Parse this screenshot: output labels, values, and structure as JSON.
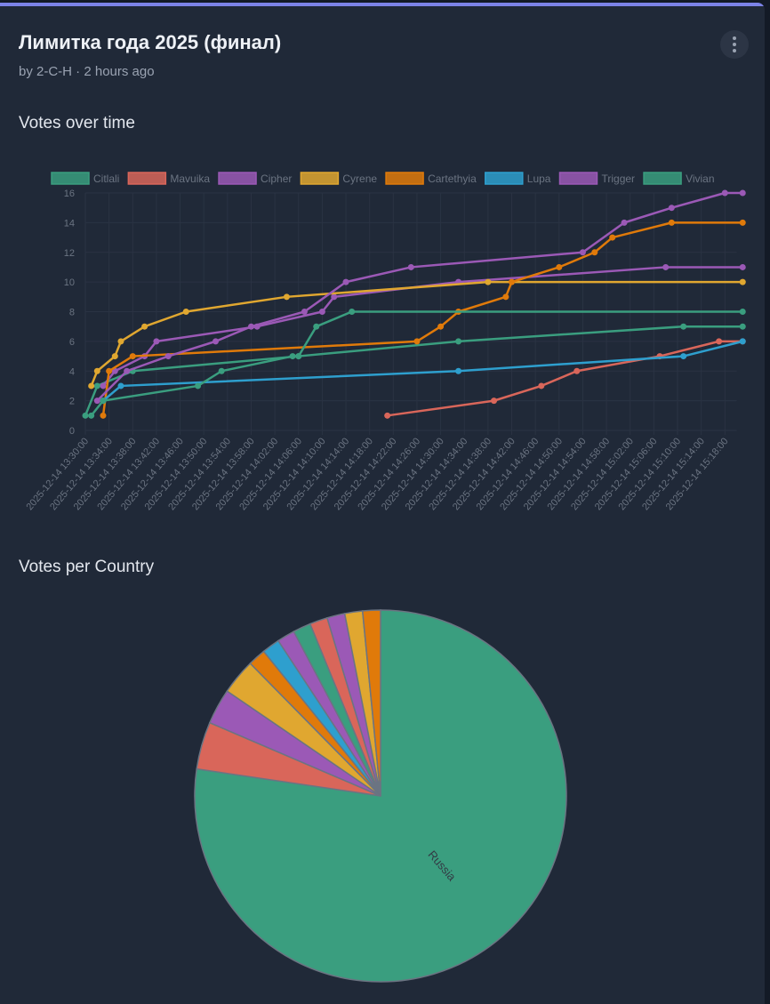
{
  "header": {
    "title": "Лимитка года 2025 (финал)",
    "byline": "by 2-C-H · 2 hours ago",
    "menu_icon": "more-vertical-icon"
  },
  "sections": {
    "line_title": "Votes over time",
    "pie_title": "Votes per Country"
  },
  "chart_data": [
    {
      "type": "line",
      "title": "Votes over time",
      "xlabel": "",
      "ylabel": "",
      "ylim": [
        0,
        16
      ],
      "yticks": [
        "0",
        "2",
        "4",
        "6",
        "8",
        "10",
        "12",
        "14",
        "16"
      ],
      "xlim": [
        "2025-12-14 13:30:00",
        "2025-12-14 15:20:00"
      ],
      "xticks": [
        "2025-12-14 13:30:00",
        "2025-12-14 13:34:00",
        "2025-12-14 13:38:00",
        "2025-12-14 13:42:00",
        "2025-12-14 13:46:00",
        "2025-12-14 13:50:00",
        "2025-12-14 13:54:00",
        "2025-12-14 13:58:00",
        "2025-12-14 14:02:00",
        "2025-12-14 14:06:00",
        "2025-12-14 14:10:00",
        "2025-12-14 14:14:00",
        "2025-12-14 14:18:00",
        "2025-12-14 14:22:00",
        "2025-12-14 14:26:00",
        "2025-12-14 14:30:00",
        "2025-12-14 14:34:00",
        "2025-12-14 14:38:00",
        "2025-12-14 14:42:00",
        "2025-12-14 14:46:00",
        "2025-12-14 14:50:00",
        "2025-12-14 14:54:00",
        "2025-12-14 14:58:00",
        "2025-12-14 15:02:00",
        "2025-12-14 15:06:00",
        "2025-12-14 15:10:00",
        "2025-12-14 15:14:00",
        "2025-12-14 15:18:00"
      ],
      "grid": true,
      "legend": "top",
      "series": [
        {
          "name": "Citlali",
          "color": "#3a9e7f",
          "points": [
            [
              "13:30",
              1
            ],
            [
              "13:32",
              3
            ],
            [
              "13:38",
              4
            ],
            [
              "14:06",
              5
            ],
            [
              "14:33",
              6
            ],
            [
              "15:11",
              7
            ],
            [
              "15:21",
              7
            ]
          ]
        },
        {
          "name": "Mavuika",
          "color": "#d9665a",
          "points": [
            [
              "14:21",
              1
            ],
            [
              "14:39",
              2
            ],
            [
              "14:47",
              3
            ],
            [
              "14:53",
              4
            ],
            [
              "15:07",
              5
            ],
            [
              "15:17",
              6
            ],
            [
              "15:21",
              6
            ]
          ]
        },
        {
          "name": "Cipher",
          "color": "#9b59b6",
          "points": [
            [
              "13:33",
              3
            ],
            [
              "13:35",
              4
            ],
            [
              "13:40",
              5
            ],
            [
              "13:42",
              6
            ],
            [
              "13:59",
              7
            ],
            [
              "14:10",
              8
            ],
            [
              "14:12",
              9
            ],
            [
              "14:33",
              10
            ],
            [
              "15:08",
              11
            ],
            [
              "15:21",
              11
            ]
          ]
        },
        {
          "name": "Cyrene",
          "color": "#e0a730",
          "points": [
            [
              "13:31",
              3
            ],
            [
              "13:32",
              4
            ],
            [
              "13:35",
              5
            ],
            [
              "13:36",
              6
            ],
            [
              "13:40",
              7
            ],
            [
              "13:47",
              8
            ],
            [
              "14:04",
              9
            ],
            [
              "14:38",
              10
            ],
            [
              "15:21",
              10
            ]
          ]
        },
        {
          "name": "Cartethyia",
          "color": "#e07a0a",
          "points": [
            [
              "13:33",
              1
            ],
            [
              "13:34",
              4
            ],
            [
              "13:38",
              5
            ],
            [
              "14:26",
              6
            ],
            [
              "14:30",
              7
            ],
            [
              "14:33",
              8
            ],
            [
              "14:41",
              9
            ],
            [
              "14:42",
              10
            ],
            [
              "14:50",
              11
            ],
            [
              "14:56",
              12
            ],
            [
              "14:59",
              13
            ],
            [
              "15:09",
              14
            ],
            [
              "15:21",
              14
            ]
          ]
        },
        {
          "name": "Lupa",
          "color": "#2e9fce",
          "points": [
            [
              "13:33",
              2
            ],
            [
              "13:36",
              3
            ],
            [
              "14:33",
              4
            ],
            [
              "15:11",
              5
            ],
            [
              "15:21",
              6
            ]
          ]
        },
        {
          "name": "Trigger",
          "color": "#9b59b6",
          "points": [
            [
              "13:32",
              2
            ],
            [
              "13:37",
              4
            ],
            [
              "13:44",
              5
            ],
            [
              "13:52",
              6
            ],
            [
              "13:58",
              7
            ],
            [
              "14:07",
              8
            ],
            [
              "14:14",
              10
            ],
            [
              "14:25",
              11
            ],
            [
              "14:54",
              12
            ],
            [
              "15:01",
              14
            ],
            [
              "15:09",
              15
            ],
            [
              "15:18",
              16
            ],
            [
              "15:21",
              16
            ]
          ]
        },
        {
          "name": "Vivian",
          "color": "#3a9e7f",
          "points": [
            [
              "13:31",
              1
            ],
            [
              "13:33",
              2
            ],
            [
              "13:49",
              3
            ],
            [
              "13:53",
              4
            ],
            [
              "14:05",
              5
            ],
            [
              "14:06",
              5
            ],
            [
              "14:09",
              7
            ],
            [
              "14:15",
              8
            ],
            [
              "15:21",
              8
            ]
          ]
        }
      ]
    },
    {
      "type": "pie",
      "title": "Votes per Country",
      "labels": [
        "Russia"
      ],
      "slices": [
        {
          "label": "Russia",
          "value": 75,
          "color": "#3a9e7f"
        },
        {
          "label": "",
          "value": 4,
          "color": "#d9665a"
        },
        {
          "label": "",
          "value": 3,
          "color": "#9b59b6"
        },
        {
          "label": "",
          "value": 3,
          "color": "#e0a730"
        },
        {
          "label": "",
          "value": 1.5,
          "color": "#e07a0a"
        },
        {
          "label": "",
          "value": 1.5,
          "color": "#2e9fce"
        },
        {
          "label": "",
          "value": 1.5,
          "color": "#9b59b6"
        },
        {
          "label": "",
          "value": 1.5,
          "color": "#3a9e7f"
        },
        {
          "label": "",
          "value": 1.5,
          "color": "#d9665a"
        },
        {
          "label": "",
          "value": 1.5,
          "color": "#9b59b6"
        },
        {
          "label": "",
          "value": 1.5,
          "color": "#e0a730"
        },
        {
          "label": "",
          "value": 1.5,
          "color": "#e07a0a"
        }
      ]
    }
  ]
}
